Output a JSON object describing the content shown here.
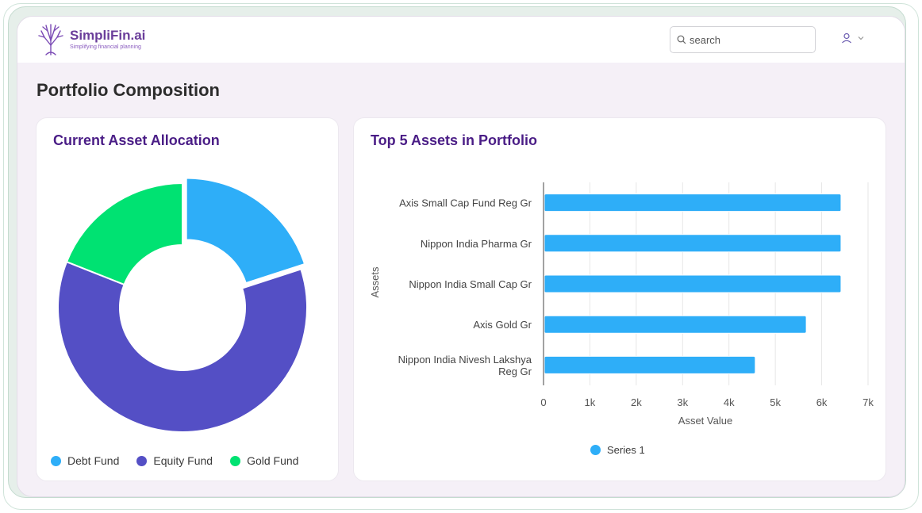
{
  "app": {
    "name": "SimpliFin.ai",
    "tagline": "Simplifying financial planning"
  },
  "header": {
    "search_placeholder": "search"
  },
  "page": {
    "title": "Portfolio Composition"
  },
  "allocation": {
    "title": "Current Asset Allocation",
    "chart_data": {
      "type": "pie",
      "donut": true,
      "categories": [
        "Debt Fund",
        "Equity Fund",
        "Gold Fund"
      ],
      "values": [
        20,
        61,
        19
      ],
      "colors": [
        "#2eaef8",
        "#544fc5",
        "#00e272"
      ],
      "legend": "bottom"
    },
    "legend": [
      {
        "label": "Debt Fund",
        "color": "#2eaef8"
      },
      {
        "label": "Equity Fund",
        "color": "#544fc5"
      },
      {
        "label": "Gold Fund",
        "color": "#00e272"
      }
    ]
  },
  "top_assets": {
    "title": "Top 5 Assets in Portfolio",
    "chart_data": {
      "type": "bar",
      "orientation": "horizontal",
      "categories": [
        "Axis Small Cap Fund Reg Gr",
        "Nippon India Pharma Gr",
        "Nippon India Small Cap Gr",
        "Axis Gold Gr",
        "Nippon India Nivesh Lakshya Reg Gr"
      ],
      "series": [
        {
          "name": "Series 1",
          "values": [
            6400,
            6400,
            6400,
            5650,
            4550
          ],
          "color": "#2eaef8"
        }
      ],
      "xlabel": "Asset Value",
      "ylabel": "Assets",
      "xlim": [
        0,
        7000
      ],
      "xticks": [
        "0",
        "1k",
        "2k",
        "3k",
        "4k",
        "5k",
        "6k",
        "7k"
      ],
      "grid": true,
      "legend": "bottom"
    }
  }
}
